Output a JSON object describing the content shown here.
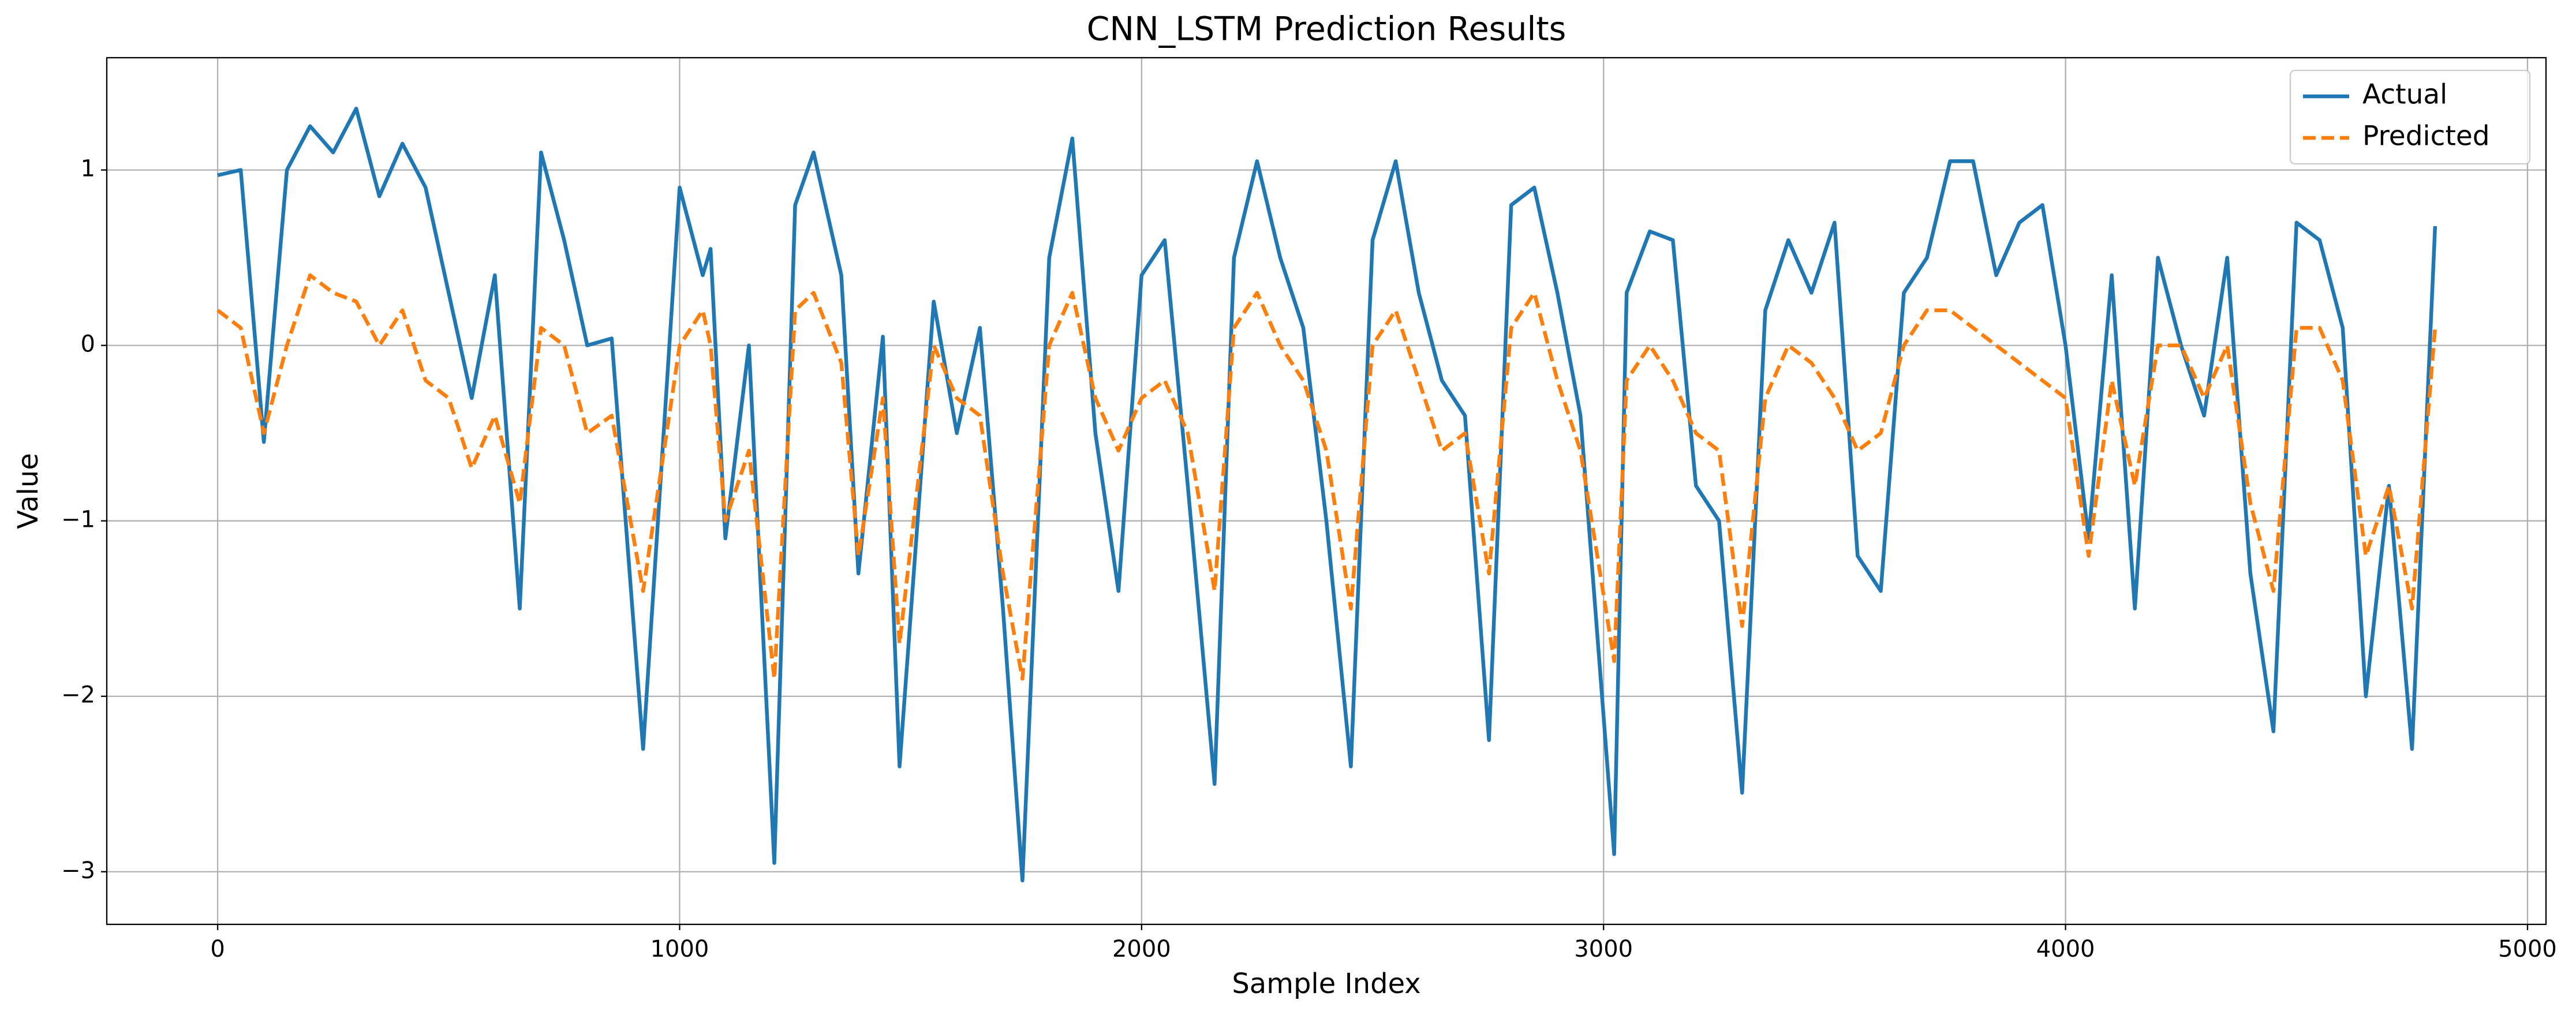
{
  "chart_data": {
    "type": "line",
    "title": "CNN_LSTM Prediction Results",
    "x_label": "Sample Index",
    "y_label": "Value",
    "x": [
      0,
      50,
      100,
      150,
      200,
      250,
      300,
      350,
      400,
      450,
      500,
      550,
      600,
      654,
      700,
      750,
      800,
      853,
      921,
      1000,
      1050,
      1067,
      1099,
      1150,
      1205,
      1250,
      1290,
      1350,
      1387,
      1440,
      1476,
      1550,
      1600,
      1650,
      1700,
      1742,
      1800,
      1850,
      1900,
      1950,
      2000,
      2050,
      2100,
      2158,
      2200,
      2250,
      2300,
      2350,
      2400,
      2453,
      2500,
      2550,
      2600,
      2650,
      2700,
      2752,
      2800,
      2850,
      2900,
      2950,
      3023,
      3050,
      3100,
      3150,
      3200,
      3250,
      3300,
      3350,
      3400,
      3450,
      3500,
      3550,
      3600,
      3650,
      3700,
      3750,
      3800,
      3850,
      3900,
      3950,
      4000,
      4050,
      4100,
      4150,
      4200,
      4250,
      4300,
      4350,
      4400,
      4450,
      4500,
      4550,
      4600,
      4650,
      4700,
      4750,
      4800
    ],
    "series": [
      {
        "name": "Actual",
        "color": "#1f77b4",
        "linestyle": "solid",
        "values": [
          0.97,
          1.0,
          -0.55,
          1.0,
          1.25,
          1.1,
          1.35,
          0.85,
          1.15,
          0.9,
          0.3,
          -0.3,
          0.4,
          -1.5,
          1.1,
          0.6,
          0.0,
          0.04,
          -2.3,
          0.9,
          0.4,
          0.55,
          -1.1,
          0.0,
          -2.95,
          0.8,
          1.1,
          0.4,
          -1.3,
          0.05,
          -2.4,
          0.25,
          -0.5,
          0.1,
          -1.5,
          -3.05,
          0.5,
          1.18,
          -0.5,
          -1.4,
          0.4,
          0.6,
          -0.8,
          -2.5,
          0.5,
          1.05,
          0.5,
          0.1,
          -1.0,
          -2.4,
          0.6,
          1.05,
          0.3,
          -0.2,
          -0.4,
          -2.25,
          0.8,
          0.9,
          0.3,
          -0.4,
          -2.9,
          0.3,
          0.65,
          0.6,
          -0.8,
          -1.0,
          -2.55,
          0.2,
          0.6,
          0.3,
          0.7,
          -1.2,
          -1.4,
          0.3,
          0.5,
          1.05,
          1.05,
          0.4,
          0.7,
          0.8,
          0.0,
          -1.1,
          0.4,
          -1.5,
          0.5,
          0.0,
          -0.4,
          0.5,
          -1.3,
          -2.2,
          0.7,
          0.6,
          0.1,
          -2.0,
          -0.8,
          -2.3,
          0.68
        ]
      },
      {
        "name": "Predicted",
        "color": "#ff7f0e",
        "linestyle": "dashed",
        "values": [
          0.2,
          0.1,
          -0.5,
          0.0,
          0.4,
          0.3,
          0.25,
          0.0,
          0.2,
          -0.2,
          -0.3,
          -0.7,
          -0.4,
          -0.9,
          0.1,
          0.0,
          -0.5,
          -0.4,
          -1.4,
          0.0,
          0.2,
          0.0,
          -1.0,
          -0.6,
          -1.9,
          0.2,
          0.3,
          -0.1,
          -1.2,
          -0.3,
          -1.7,
          0.0,
          -0.3,
          -0.4,
          -1.3,
          -1.9,
          0.0,
          0.3,
          -0.3,
          -0.6,
          -0.3,
          -0.2,
          -0.5,
          -1.4,
          0.1,
          0.3,
          0.0,
          -0.2,
          -0.6,
          -1.5,
          0.0,
          0.2,
          -0.2,
          -0.6,
          -0.5,
          -1.3,
          0.1,
          0.3,
          -0.2,
          -0.6,
          -1.8,
          -0.2,
          0.0,
          -0.2,
          -0.5,
          -0.6,
          -1.6,
          -0.3,
          0.0,
          -0.1,
          -0.3,
          -0.6,
          -0.5,
          0.0,
          0.2,
          0.2,
          0.1,
          0.0,
          -0.1,
          -0.2,
          -0.3,
          -1.2,
          -0.2,
          -0.8,
          0.0,
          0.0,
          -0.3,
          0.0,
          -0.9,
          -1.4,
          0.1,
          0.1,
          -0.2,
          -1.2,
          -0.8,
          -1.5,
          0.1
        ]
      }
    ],
    "xlim": [
      -240,
      5040
    ],
    "ylim": [
      -3.3,
      1.64
    ],
    "xticks": [
      0,
      1000,
      2000,
      3000,
      4000,
      5000
    ],
    "yticks": [
      {
        "value": -3,
        "label": "−3"
      },
      {
        "value": -2,
        "label": "−2"
      },
      {
        "value": -1,
        "label": "−1"
      },
      0,
      1
    ],
    "grid": true,
    "legend": "upper right"
  }
}
